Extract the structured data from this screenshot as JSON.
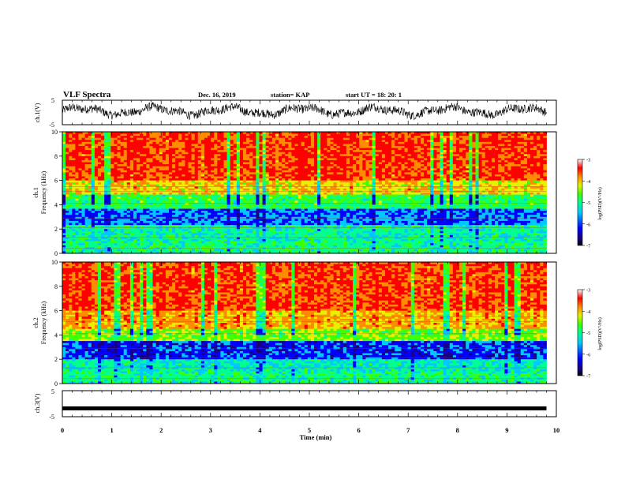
{
  "header": {
    "title": "VLF Spectra",
    "date": "Dec. 16, 2019",
    "station": "station= KAP",
    "start": "start  UT  =   18: 20: 1"
  },
  "colors": {
    "background": "#ffffff",
    "waveform": "#000000",
    "spectrogram_palette": [
      "#1a0080",
      "#0000ff",
      "#00c8ff",
      "#00ff90",
      "#40ff00",
      "#e8f000",
      "#ff8c00",
      "#ff0000"
    ]
  },
  "chart_data": [
    {
      "type": "line",
      "panel": "ch1",
      "ylabel": "ch.1(V)",
      "ylim": [
        -5,
        5
      ],
      "yticks": [
        "5",
        "-5"
      ],
      "description_series": "noisy waveform, roughly between -2 and 3 V"
    },
    {
      "type": "heatmap",
      "panel": "ch1_spec",
      "ylabel_line1": "ch.1",
      "ylabel_line2": "Frequency  (kHz)",
      "ylim": [
        0,
        10
      ],
      "yticks": [
        "0",
        "2",
        "4",
        "6",
        "8",
        "10"
      ],
      "bands": [
        {
          "from": 0.0,
          "to": 1.0,
          "level": 0.45
        },
        {
          "from": 1.0,
          "to": 2.4,
          "level": 0.42
        },
        {
          "from": 2.4,
          "to": 3.6,
          "level": 0.25
        },
        {
          "from": 3.6,
          "to": 4.8,
          "level": 0.5
        },
        {
          "from": 4.8,
          "to": 6.0,
          "level": 0.72
        },
        {
          "from": 6.0,
          "to": 10.0,
          "level": 0.9
        }
      ],
      "colorbar": {
        "label": "log(PSD)(V²/Hz)",
        "ticks": [
          "-3",
          "-4",
          "-5",
          "-6",
          "-7"
        ],
        "range": [
          -7,
          -3
        ]
      }
    },
    {
      "type": "heatmap",
      "panel": "ch2_spec",
      "ylabel_line1": "ch.2",
      "ylabel_line2": "Frequency  (kHz)",
      "ylim": [
        0,
        10
      ],
      "yticks": [
        "0",
        "2",
        "4",
        "6",
        "8",
        "10"
      ],
      "bands": [
        {
          "from": 0.0,
          "to": 1.0,
          "level": 0.45
        },
        {
          "from": 1.0,
          "to": 2.0,
          "level": 0.4
        },
        {
          "from": 2.0,
          "to": 3.5,
          "level": 0.2
        },
        {
          "from": 3.5,
          "to": 4.5,
          "level": 0.6
        },
        {
          "from": 4.5,
          "to": 6.0,
          "level": 0.78
        },
        {
          "from": 6.0,
          "to": 10.0,
          "level": 0.9
        }
      ],
      "colorbar": {
        "label": "log(PSD)(V²/Hz)",
        "ticks": [
          "-3",
          "-4",
          "-5",
          "-6",
          "-7"
        ],
        "range": [
          -7,
          -3
        ]
      }
    },
    {
      "type": "line",
      "panel": "ch3",
      "ylabel": "ch.3(V)",
      "ylim": [
        -5,
        5
      ],
      "yticks": [
        "5",
        "-5"
      ],
      "series": [
        {
          "values": [
            -1.8,
            -1.8
          ]
        }
      ]
    }
  ],
  "xaxis": {
    "label": "Time  (min)",
    "range": [
      0,
      10
    ],
    "ticks": [
      "0",
      "1",
      "2",
      "3",
      "4",
      "5",
      "6",
      "7",
      "8",
      "9",
      "10"
    ],
    "data_end": 9.8
  }
}
